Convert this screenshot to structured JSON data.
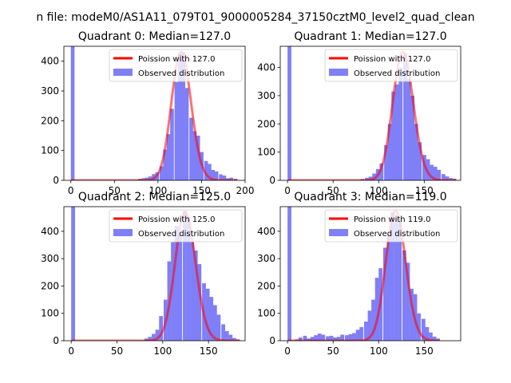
{
  "figure": {
    "suptitle": "n file: modeM0/AS1A11_079T01_9000005284_37150cztM0_level2_quad_clean"
  },
  "chart_data": [
    {
      "type": "bar",
      "title": "Quadrant 0: Median=127.0",
      "xlim": [
        -8,
        200
      ],
      "ylim": [
        0,
        450
      ],
      "xticks": [
        0,
        50,
        100,
        150,
        200
      ],
      "yticks": [
        0,
        100,
        200,
        300,
        400
      ],
      "legend": {
        "position": "upper-right",
        "line_label": "Poission with 127.0",
        "bar_label": "Observed distribution"
      },
      "poisson_mean": 127.0,
      "poisson_peak": 432,
      "colors": {
        "bars": "#7f7ff8",
        "line": "#ff0000"
      },
      "histogram": {
        "bin_width": 4.25,
        "bins": [
          {
            "x": 0,
            "count": 450
          },
          {
            "x": 77,
            "count": 5
          },
          {
            "x": 81,
            "count": 7
          },
          {
            "x": 85,
            "count": 9
          },
          {
            "x": 89,
            "count": 13
          },
          {
            "x": 93,
            "count": 21
          },
          {
            "x": 97,
            "count": 27
          },
          {
            "x": 102,
            "count": 47
          },
          {
            "x": 106,
            "count": 103
          },
          {
            "x": 110,
            "count": 155
          },
          {
            "x": 114,
            "count": 240
          },
          {
            "x": 119,
            "count": 330
          },
          {
            "x": 123,
            "count": 425
          },
          {
            "x": 127,
            "count": 430
          },
          {
            "x": 131,
            "count": 310
          },
          {
            "x": 136,
            "count": 210
          },
          {
            "x": 140,
            "count": 165
          },
          {
            "x": 144,
            "count": 150
          },
          {
            "x": 148,
            "count": 95
          },
          {
            "x": 153,
            "count": 65
          },
          {
            "x": 157,
            "count": 55
          },
          {
            "x": 161,
            "count": 35
          },
          {
            "x": 165,
            "count": 30
          },
          {
            "x": 170,
            "count": 20
          },
          {
            "x": 174,
            "count": 16
          },
          {
            "x": 178,
            "count": 7
          },
          {
            "x": 182,
            "count": 9
          },
          {
            "x": 187,
            "count": 5
          }
        ]
      }
    },
    {
      "type": "bar",
      "title": "Quadrant 1: Median=127.0",
      "xlim": [
        -8,
        190
      ],
      "ylim": [
        0,
        475
      ],
      "xticks": [
        0,
        50,
        100,
        150
      ],
      "yticks": [
        0,
        100,
        200,
        300,
        400
      ],
      "legend": {
        "position": "upper-right",
        "line_label": "Poission with 127.0",
        "bar_label": "Observed distribution"
      },
      "poisson_mean": 127.0,
      "poisson_peak": 455,
      "colors": {
        "bars": "#7f7ff8",
        "line": "#ff0000"
      },
      "histogram": {
        "bin_width": 4.2,
        "bins": [
          {
            "x": 0,
            "count": 475
          },
          {
            "x": 80,
            "count": 5
          },
          {
            "x": 85,
            "count": 9
          },
          {
            "x": 89,
            "count": 13
          },
          {
            "x": 93,
            "count": 24
          },
          {
            "x": 97,
            "count": 40
          },
          {
            "x": 101,
            "count": 60
          },
          {
            "x": 106,
            "count": 125
          },
          {
            "x": 110,
            "count": 200
          },
          {
            "x": 114,
            "count": 315
          },
          {
            "x": 118,
            "count": 340
          },
          {
            "x": 122,
            "count": 400
          },
          {
            "x": 127,
            "count": 450
          },
          {
            "x": 131,
            "count": 360
          },
          {
            "x": 135,
            "count": 300
          },
          {
            "x": 139,
            "count": 200
          },
          {
            "x": 143,
            "count": 135
          },
          {
            "x": 148,
            "count": 90
          },
          {
            "x": 152,
            "count": 75
          },
          {
            "x": 156,
            "count": 55
          },
          {
            "x": 160,
            "count": 48
          },
          {
            "x": 164,
            "count": 37
          },
          {
            "x": 169,
            "count": 22
          },
          {
            "x": 173,
            "count": 14
          },
          {
            "x": 177,
            "count": 8
          },
          {
            "x": 181,
            "count": 6
          }
        ]
      }
    },
    {
      "type": "bar",
      "title": "Quadrant 2: Median=125.0",
      "xlim": [
        -8,
        190
      ],
      "ylim": [
        0,
        490
      ],
      "xticks": [
        0,
        50,
        100,
        150
      ],
      "yticks": [
        0,
        100,
        200,
        300,
        400
      ],
      "legend": {
        "position": "upper-right",
        "line_label": "Poission with 125.0",
        "bar_label": "Observed distribution"
      },
      "poisson_mean": 125.0,
      "poisson_peak": 470,
      "colors": {
        "bars": "#7f7ff8",
        "line": "#ff0000"
      },
      "histogram": {
        "bin_width": 4.2,
        "bins": [
          {
            "x": 0,
            "count": 490
          },
          {
            "x": 80,
            "count": 8
          },
          {
            "x": 84,
            "count": 14
          },
          {
            "x": 88,
            "count": 25
          },
          {
            "x": 92,
            "count": 40
          },
          {
            "x": 96,
            "count": 90
          },
          {
            "x": 101,
            "count": 150
          },
          {
            "x": 105,
            "count": 290
          },
          {
            "x": 109,
            "count": 360
          },
          {
            "x": 113,
            "count": 420
          },
          {
            "x": 117,
            "count": 390
          },
          {
            "x": 122,
            "count": 475
          },
          {
            "x": 126,
            "count": 450
          },
          {
            "x": 130,
            "count": 360
          },
          {
            "x": 134,
            "count": 330
          },
          {
            "x": 138,
            "count": 280
          },
          {
            "x": 143,
            "count": 210
          },
          {
            "x": 147,
            "count": 190
          },
          {
            "x": 151,
            "count": 160
          },
          {
            "x": 155,
            "count": 130
          },
          {
            "x": 159,
            "count": 95
          },
          {
            "x": 164,
            "count": 60
          },
          {
            "x": 168,
            "count": 35
          },
          {
            "x": 172,
            "count": 22
          },
          {
            "x": 176,
            "count": 10
          },
          {
            "x": 180,
            "count": 5
          }
        ]
      }
    },
    {
      "type": "bar",
      "title": "Quadrant 3: Median=119.0",
      "xlim": [
        -8,
        190
      ],
      "ylim": [
        0,
        490
      ],
      "xticks": [
        0,
        50,
        100,
        150
      ],
      "yticks": [
        0,
        100,
        200,
        300,
        400
      ],
      "legend": {
        "position": "upper-right",
        "line_label": "Poission with 119.0",
        "bar_label": "Observed distribution"
      },
      "poisson_mean": 119.0,
      "poisson_peak": 475,
      "colors": {
        "bars": "#7f7ff8",
        "line": "#ff0000"
      },
      "histogram": {
        "bin_width": 4.2,
        "bins": [
          {
            "x": 0,
            "count": 490
          },
          {
            "x": 8,
            "count": 5
          },
          {
            "x": 12,
            "count": 12
          },
          {
            "x": 17,
            "count": 18
          },
          {
            "x": 21,
            "count": 8
          },
          {
            "x": 25,
            "count": 14
          },
          {
            "x": 29,
            "count": 20
          },
          {
            "x": 33,
            "count": 26
          },
          {
            "x": 37,
            "count": 22
          },
          {
            "x": 42,
            "count": 16
          },
          {
            "x": 46,
            "count": 18
          },
          {
            "x": 50,
            "count": 12
          },
          {
            "x": 54,
            "count": 14
          },
          {
            "x": 58,
            "count": 22
          },
          {
            "x": 63,
            "count": 20
          },
          {
            "x": 67,
            "count": 24
          },
          {
            "x": 71,
            "count": 28
          },
          {
            "x": 75,
            "count": 40
          },
          {
            "x": 79,
            "count": 50
          },
          {
            "x": 84,
            "count": 70
          },
          {
            "x": 88,
            "count": 110
          },
          {
            "x": 92,
            "count": 150
          },
          {
            "x": 96,
            "count": 230
          },
          {
            "x": 100,
            "count": 265
          },
          {
            "x": 105,
            "count": 340
          },
          {
            "x": 109,
            "count": 385
          },
          {
            "x": 113,
            "count": 470
          },
          {
            "x": 117,
            "count": 450
          },
          {
            "x": 121,
            "count": 435
          },
          {
            "x": 126,
            "count": 330
          },
          {
            "x": 130,
            "count": 285
          },
          {
            "x": 134,
            "count": 190
          },
          {
            "x": 138,
            "count": 170
          },
          {
            "x": 142,
            "count": 100
          },
          {
            "x": 147,
            "count": 80
          },
          {
            "x": 151,
            "count": 50
          },
          {
            "x": 155,
            "count": 30
          },
          {
            "x": 159,
            "count": 15
          },
          {
            "x": 163,
            "count": 8
          }
        ]
      }
    }
  ]
}
